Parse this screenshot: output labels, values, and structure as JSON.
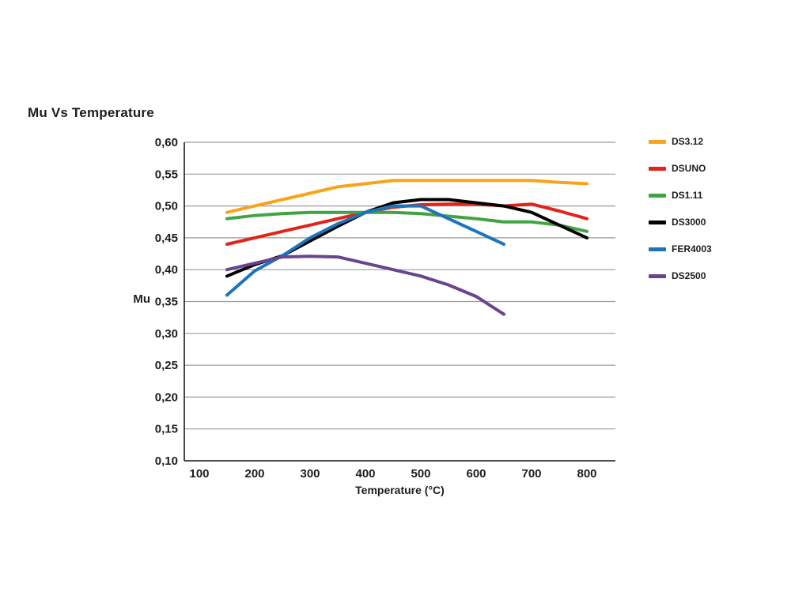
{
  "chart_data": {
    "type": "line",
    "title": "Mu Vs Temperature",
    "xlabel": "Temperature (°C)",
    "ylabel": "Mu",
    "xlim": [
      75,
      850
    ],
    "ylim": [
      0.1,
      0.6
    ],
    "x_ticks": [
      100,
      200,
      300,
      400,
      500,
      600,
      700,
      800
    ],
    "y_ticks": [
      0.6,
      0.55,
      0.5,
      0.45,
      0.4,
      0.35,
      0.3,
      0.25,
      0.2,
      0.15,
      0.1
    ],
    "y_tick_labels": [
      "0,60",
      "0,55",
      "0,50",
      "0,45",
      "0,40",
      "0,35",
      "0,30",
      "0,25",
      "0,20",
      "0,15",
      "0,10"
    ],
    "grid": true,
    "legend_position": "right",
    "colors": {
      "grid": "#9b9b9b",
      "axis": "#1a1a18",
      "text": "#1d1d1b"
    },
    "series": [
      {
        "name": "DS3.12",
        "color": "#F7A31C",
        "points": [
          [
            150,
            0.49
          ],
          [
            200,
            0.5
          ],
          [
            250,
            0.51
          ],
          [
            300,
            0.52
          ],
          [
            350,
            0.53
          ],
          [
            400,
            0.535
          ],
          [
            450,
            0.54
          ],
          [
            500,
            0.54
          ],
          [
            550,
            0.54
          ],
          [
            600,
            0.54
          ],
          [
            650,
            0.54
          ],
          [
            700,
            0.54
          ],
          [
            750,
            0.537
          ],
          [
            800,
            0.535
          ]
        ]
      },
      {
        "name": "DSUNO",
        "color": "#E2231A",
        "points": [
          [
            150,
            0.44
          ],
          [
            200,
            0.45
          ],
          [
            250,
            0.46
          ],
          [
            300,
            0.47
          ],
          [
            350,
            0.48
          ],
          [
            400,
            0.49
          ],
          [
            450,
            0.498
          ],
          [
            500,
            0.502
          ],
          [
            550,
            0.503
          ],
          [
            600,
            0.503
          ],
          [
            650,
            0.5
          ],
          [
            700,
            0.503
          ],
          [
            750,
            0.492
          ],
          [
            800,
            0.48
          ]
        ]
      },
      {
        "name": "DS1.11",
        "color": "#41A344",
        "points": [
          [
            150,
            0.48
          ],
          [
            200,
            0.485
          ],
          [
            250,
            0.488
          ],
          [
            300,
            0.49
          ],
          [
            350,
            0.49
          ],
          [
            400,
            0.49
          ],
          [
            450,
            0.49
          ],
          [
            500,
            0.488
          ],
          [
            550,
            0.484
          ],
          [
            600,
            0.48
          ],
          [
            650,
            0.475
          ],
          [
            700,
            0.475
          ],
          [
            750,
            0.47
          ],
          [
            800,
            0.46
          ]
        ]
      },
      {
        "name": "DS3000",
        "color": "#000000",
        "points": [
          [
            150,
            0.39
          ],
          [
            200,
            0.408
          ],
          [
            250,
            0.422
          ],
          [
            300,
            0.445
          ],
          [
            350,
            0.468
          ],
          [
            400,
            0.49
          ],
          [
            450,
            0.505
          ],
          [
            500,
            0.51
          ],
          [
            550,
            0.51
          ],
          [
            600,
            0.505
          ],
          [
            650,
            0.5
          ],
          [
            700,
            0.49
          ],
          [
            750,
            0.47
          ],
          [
            800,
            0.45
          ]
        ]
      },
      {
        "name": "FER4003",
        "color": "#1B75BC",
        "points": [
          [
            150,
            0.36
          ],
          [
            200,
            0.398
          ],
          [
            250,
            0.422
          ],
          [
            300,
            0.45
          ],
          [
            350,
            0.472
          ],
          [
            400,
            0.49
          ],
          [
            450,
            0.5
          ],
          [
            500,
            0.5
          ],
          [
            550,
            0.48
          ],
          [
            600,
            0.46
          ],
          [
            650,
            0.44
          ]
        ]
      },
      {
        "name": "DS2500",
        "color": "#68458F",
        "points": [
          [
            150,
            0.4
          ],
          [
            200,
            0.41
          ],
          [
            250,
            0.42
          ],
          [
            300,
            0.421
          ],
          [
            350,
            0.42
          ],
          [
            400,
            0.41
          ],
          [
            450,
            0.4
          ],
          [
            500,
            0.39
          ],
          [
            550,
            0.376
          ],
          [
            600,
            0.358
          ],
          [
            650,
            0.33
          ]
        ]
      }
    ]
  }
}
